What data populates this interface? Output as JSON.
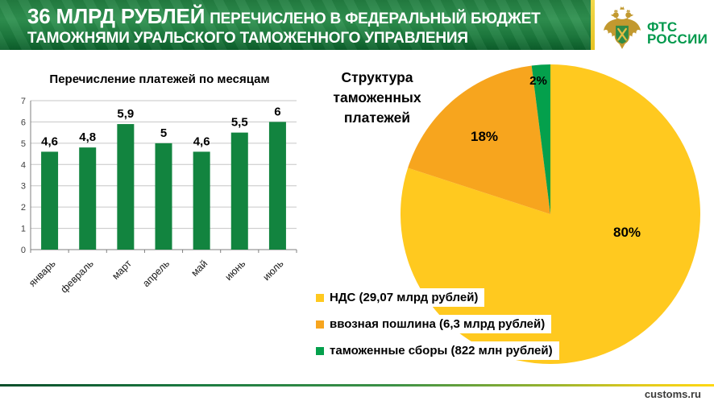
{
  "header": {
    "title_strong": "36 МЛРД РУБЛЕЙ",
    "title_rest": "ПЕРЕЧИСЛЕНО В ФЕДЕРАЛЬНЫЙ БЮДЖЕТ",
    "title_line2": "ТАМОЖНЯМИ УРАЛЬСКОГО ТАМОЖЕННОГО УПРАВЛЕНИЯ",
    "logo": {
      "emblem_icon": "fts-eagle-emblem",
      "line1": "ФТС",
      "line2": "РОССИИ",
      "text_color": "#00994c"
    }
  },
  "footer": {
    "site": "customs.ru"
  },
  "colors": {
    "header_green": "#1d7b3e",
    "accent_yellow": "#e9c92d",
    "bar_green": "#12843F",
    "axis_gray": "#7f7f7f",
    "grid_gray": "#c6c6c6"
  },
  "chart_data": [
    {
      "type": "bar",
      "title": "Перечисление платежей по месяцам",
      "categories": [
        "январь",
        "февраль",
        "март",
        "апрель",
        "май",
        "июнь",
        "июль"
      ],
      "values": [
        4.6,
        4.8,
        5.9,
        5,
        4.6,
        5.5,
        6
      ],
      "value_labels": [
        "4,6",
        "4,8",
        "5,9",
        "5",
        "4,6",
        "5,5",
        "6"
      ],
      "xlabel": "",
      "ylabel": "",
      "ylim": [
        0,
        7
      ],
      "ytick_step": 1,
      "grid": true,
      "bar_color": "#12843F",
      "legend_position": "none"
    },
    {
      "type": "pie",
      "title": "Структура таможенных платежей",
      "title_display": "Структура\nтаможенных\nплатежей",
      "start_angle_deg": 0,
      "direction": "clockwise",
      "legend_position": "bottom-left-overlapping-pie",
      "slices": [
        {
          "label": "НДС (29,07 млрд рублей)",
          "percent": 80,
          "percent_label": "80%",
          "color": "#FFC91F"
        },
        {
          "label": "ввозная пошлина (6,3 млрд рублей)",
          "percent": 18,
          "percent_label": "18%",
          "color": "#F7A51E"
        },
        {
          "label": "таможенные сборы (822 млн рублей)",
          "percent": 2,
          "percent_label": "2%",
          "color": "#04A04C"
        }
      ]
    }
  ]
}
